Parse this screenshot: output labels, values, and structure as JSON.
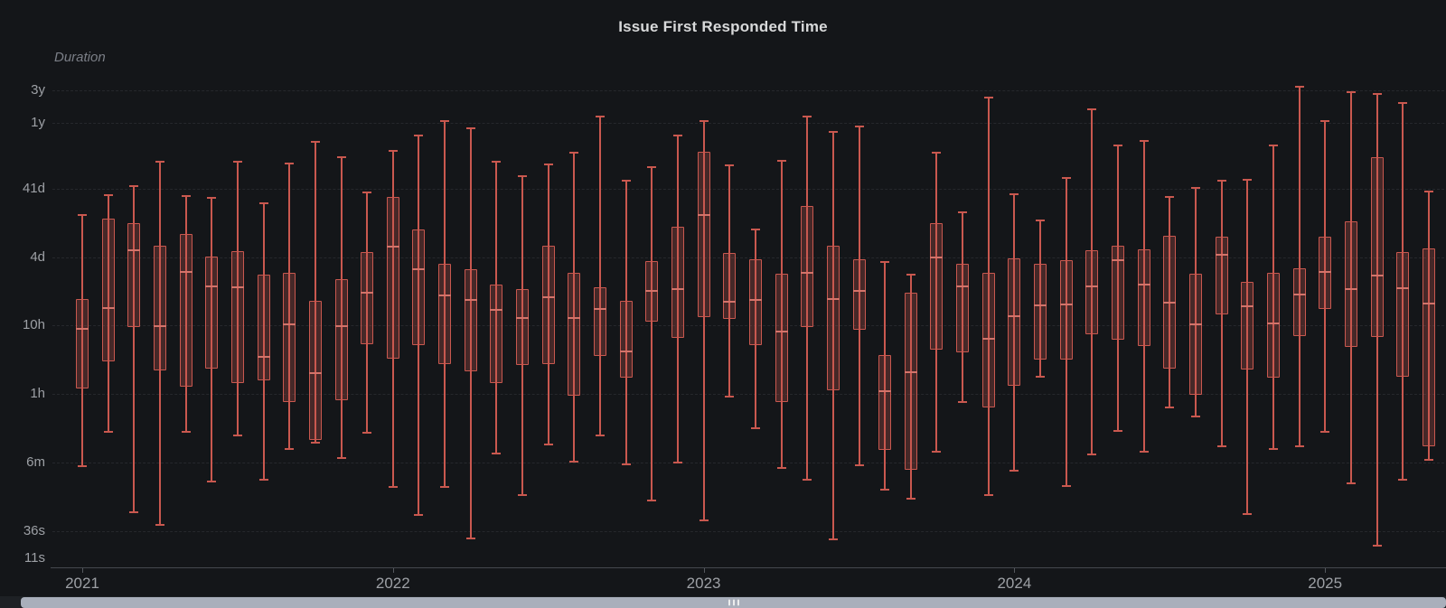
{
  "panel": {
    "title": "Issue First Responded Time"
  },
  "y_axis": {
    "label": "Duration",
    "ticks": [
      {
        "label": "3y",
        "seconds": 94608000
      },
      {
        "label": "1y",
        "seconds": 31536000
      },
      {
        "label": "41d",
        "seconds": 3542400
      },
      {
        "label": "4d",
        "seconds": 345600
      },
      {
        "label": "10h",
        "seconds": 36000
      },
      {
        "label": "1h",
        "seconds": 3600
      },
      {
        "label": "6m",
        "seconds": 360
      },
      {
        "label": "36s",
        "seconds": 36
      },
      {
        "label": "11s",
        "seconds": 11
      }
    ]
  },
  "x_axis": {
    "year_ticks": [
      {
        "label": "2021",
        "month_index": 0
      },
      {
        "label": "2022",
        "month_index": 12
      },
      {
        "label": "2023",
        "month_index": 24
      },
      {
        "label": "2024",
        "month_index": 36
      },
      {
        "label": "2025",
        "month_index": 48
      }
    ]
  },
  "colors": {
    "background": "#141619",
    "grid": "#26282c",
    "text": "#9da0a5",
    "title": "#d8d9da",
    "box_stroke": "#c9584f",
    "box_fill": "rgba(201,88,79,0.28)",
    "median": "#d4736a",
    "scrollbar_thumb": "#a9afbb"
  },
  "scrollbar": {
    "grip_icon": "drag-dots"
  },
  "chart_data": {
    "type": "boxplot",
    "title": "Issue First Responded Time",
    "ylabel": "Duration",
    "unit": "seconds",
    "y_scale": "log",
    "y_ticks": [
      "3y",
      "1y",
      "41d",
      "4d",
      "10h",
      "1h",
      "6m",
      "36s",
      "11s"
    ],
    "x_tick_labels": [
      "2021",
      "2022",
      "2023",
      "2024",
      "2025"
    ],
    "legend": "off",
    "boxes": [
      {
        "month": "2021-01",
        "min": 320,
        "q1": 4300,
        "med": 32000,
        "q3": 87000,
        "max": 1450000
      },
      {
        "month": "2021-02",
        "min": 1000,
        "q1": 10700,
        "med": 64000,
        "q3": 1280000,
        "max": 2820000
      },
      {
        "month": "2021-03",
        "min": 68,
        "q1": 34000,
        "med": 445000,
        "q3": 1100000,
        "max": 3820000
      },
      {
        "month": "2021-04",
        "min": 45,
        "q1": 7900,
        "med": 35000,
        "q3": 518000,
        "max": 8700000
      },
      {
        "month": "2021-05",
        "min": 1000,
        "q1": 4600,
        "med": 215000,
        "q3": 767000,
        "max": 2740000
      },
      {
        "month": "2021-06",
        "min": 190,
        "q1": 8400,
        "med": 132000,
        "q3": 360000,
        "max": 2580000
      },
      {
        "month": "2021-07",
        "min": 890,
        "q1": 5200,
        "med": 128000,
        "q3": 431000,
        "max": 8700000
      },
      {
        "month": "2021-08",
        "min": 200,
        "q1": 5700,
        "med": 12500,
        "q3": 196000,
        "max": 2150000
      },
      {
        "month": "2021-09",
        "min": 570,
        "q1": 2700,
        "med": 37000,
        "q3": 209000,
        "max": 8150000
      },
      {
        "month": "2021-10",
        "min": 700,
        "q1": 770,
        "med": 7200,
        "q3": 81000,
        "max": 16900000
      },
      {
        "month": "2021-11",
        "min": 420,
        "q1": 2900,
        "med": 35000,
        "q3": 169000,
        "max": 10100000
      },
      {
        "month": "2021-12",
        "min": 980,
        "q1": 19000,
        "med": 107000,
        "q3": 419000,
        "max": 3090000
      },
      {
        "month": "2022-01",
        "min": 160,
        "q1": 11700,
        "med": 502000,
        "q3": 2660000,
        "max": 12500000
      },
      {
        "month": "2022-02",
        "min": 62,
        "q1": 18500,
        "med": 235000,
        "q3": 893000,
        "max": 20800000
      },
      {
        "month": "2022-03",
        "min": 160,
        "q1": 9800,
        "med": 98000,
        "q3": 282000,
        "max": 33900000
      },
      {
        "month": "2022-04",
        "min": 28,
        "q1": 7700,
        "med": 84000,
        "q3": 235000,
        "max": 26600000
      },
      {
        "month": "2022-05",
        "min": 490,
        "q1": 5200,
        "med": 60000,
        "q3": 141000,
        "max": 8700000
      },
      {
        "month": "2022-06",
        "min": 120,
        "q1": 9500,
        "med": 46000,
        "q3": 121000,
        "max": 5330000
      },
      {
        "month": "2022-07",
        "min": 660,
        "q1": 9800,
        "med": 92000,
        "q3": 518000,
        "max": 7900000
      },
      {
        "month": "2022-08",
        "min": 370,
        "q1": 3400,
        "med": 46000,
        "q3": 209000,
        "max": 11700000
      },
      {
        "month": "2022-09",
        "min": 890,
        "q1": 12800,
        "med": 62000,
        "q3": 128000,
        "max": 39400000
      },
      {
        "month": "2022-10",
        "min": 340,
        "q1": 6200,
        "med": 14900,
        "q3": 81000,
        "max": 4580000
      },
      {
        "month": "2022-11",
        "min": 100,
        "q1": 40600,
        "med": 114000,
        "q3": 309000,
        "max": 7220000
      },
      {
        "month": "2022-12",
        "min": 360,
        "q1": 23500,
        "med": 121000,
        "q3": 978000,
        "max": 20800000
      },
      {
        "month": "2023-01",
        "min": 52,
        "q1": 47000,
        "med": 1450000,
        "q3": 12100000,
        "max": 33900000
      },
      {
        "month": "2023-02",
        "min": 3300,
        "q1": 44500,
        "med": 80000,
        "q3": 406000,
        "max": 7670000
      },
      {
        "month": "2023-03",
        "min": 1140,
        "q1": 18500,
        "med": 84000,
        "q3": 329000,
        "max": 893000
      },
      {
        "month": "2023-04",
        "min": 300,
        "q1": 2700,
        "med": 29000,
        "q3": 202000,
        "max": 8930000
      },
      {
        "month": "2023-05",
        "min": 200,
        "q1": 34000,
        "med": 209000,
        "q3": 1960000,
        "max": 39400000
      },
      {
        "month": "2023-06",
        "min": 27,
        "q1": 4060,
        "med": 87000,
        "q3": 518000,
        "max": 23500000
      },
      {
        "month": "2023-07",
        "min": 330,
        "q1": 31000,
        "med": 114000,
        "q3": 329000,
        "max": 28200000
      },
      {
        "month": "2023-08",
        "min": 145,
        "q1": 550,
        "med": 3900,
        "q3": 13200,
        "max": 300000
      },
      {
        "month": "2023-09",
        "min": 107,
        "q1": 282,
        "med": 7400,
        "q3": 107000,
        "max": 196000
      },
      {
        "month": "2023-10",
        "min": 520,
        "q1": 15900,
        "med": 349000,
        "q3": 1100000,
        "max": 11700000
      },
      {
        "month": "2023-11",
        "min": 2700,
        "q1": 14500,
        "med": 132000,
        "q3": 282000,
        "max": 1590000
      },
      {
        "month": "2023-12",
        "min": 120,
        "q1": 2280,
        "med": 22800,
        "q3": 209000,
        "max": 74400000
      },
      {
        "month": "2024-01",
        "min": 270,
        "q1": 4700,
        "med": 49000,
        "q3": 339000,
        "max": 2910000
      },
      {
        "month": "2024-02",
        "min": 6400,
        "q1": 11400,
        "med": 70000,
        "q3": 282000,
        "max": 1210000
      },
      {
        "month": "2024-03",
        "min": 164,
        "q1": 11400,
        "med": 72000,
        "q3": 319000,
        "max": 5020000
      },
      {
        "month": "2024-04",
        "min": 470,
        "q1": 26600,
        "med": 132000,
        "q3": 445000,
        "max": 50200000
      },
      {
        "month": "2024-05",
        "min": 1040,
        "q1": 22200,
        "med": 319000,
        "q3": 518000,
        "max": 14900000
      },
      {
        "month": "2024-06",
        "min": 520,
        "q1": 17900,
        "med": 141000,
        "q3": 458000,
        "max": 17400000
      },
      {
        "month": "2024-07",
        "min": 2280,
        "q1": 8400,
        "med": 77000,
        "q3": 722000,
        "max": 2660000
      },
      {
        "month": "2024-08",
        "min": 1690,
        "q1": 3500,
        "med": 37000,
        "q3": 202000,
        "max": 3600000
      },
      {
        "month": "2024-09",
        "min": 620,
        "q1": 52000,
        "med": 382000,
        "q3": 700000,
        "max": 4580000
      },
      {
        "month": "2024-10",
        "min": 64,
        "q1": 8150,
        "med": 68000,
        "q3": 154000,
        "max": 4720000
      },
      {
        "month": "2024-11",
        "min": 570,
        "q1": 6200,
        "med": 38000,
        "q3": 209000,
        "max": 14900000
      },
      {
        "month": "2024-12",
        "min": 620,
        "q1": 25000,
        "med": 101000,
        "q3": 243000,
        "max": 107000000
      },
      {
        "month": "2025-01",
        "min": 1010,
        "q1": 62000,
        "med": 215000,
        "q3": 700000,
        "max": 33900000
      },
      {
        "month": "2025-02",
        "min": 179,
        "q1": 17400,
        "med": 121000,
        "q3": 1170000,
        "max": 89300000
      },
      {
        "month": "2025-03",
        "min": 22,
        "q1": 24300,
        "med": 190000,
        "q3": 10100000,
        "max": 84000000
      },
      {
        "month": "2025-04",
        "min": 202,
        "q1": 6400,
        "med": 125000,
        "q3": 419000,
        "max": 62000000
      },
      {
        "month": "2025-05",
        "min": 394,
        "q1": 620,
        "med": 74400,
        "q3": 472000,
        "max": 3190000
      }
    ]
  }
}
